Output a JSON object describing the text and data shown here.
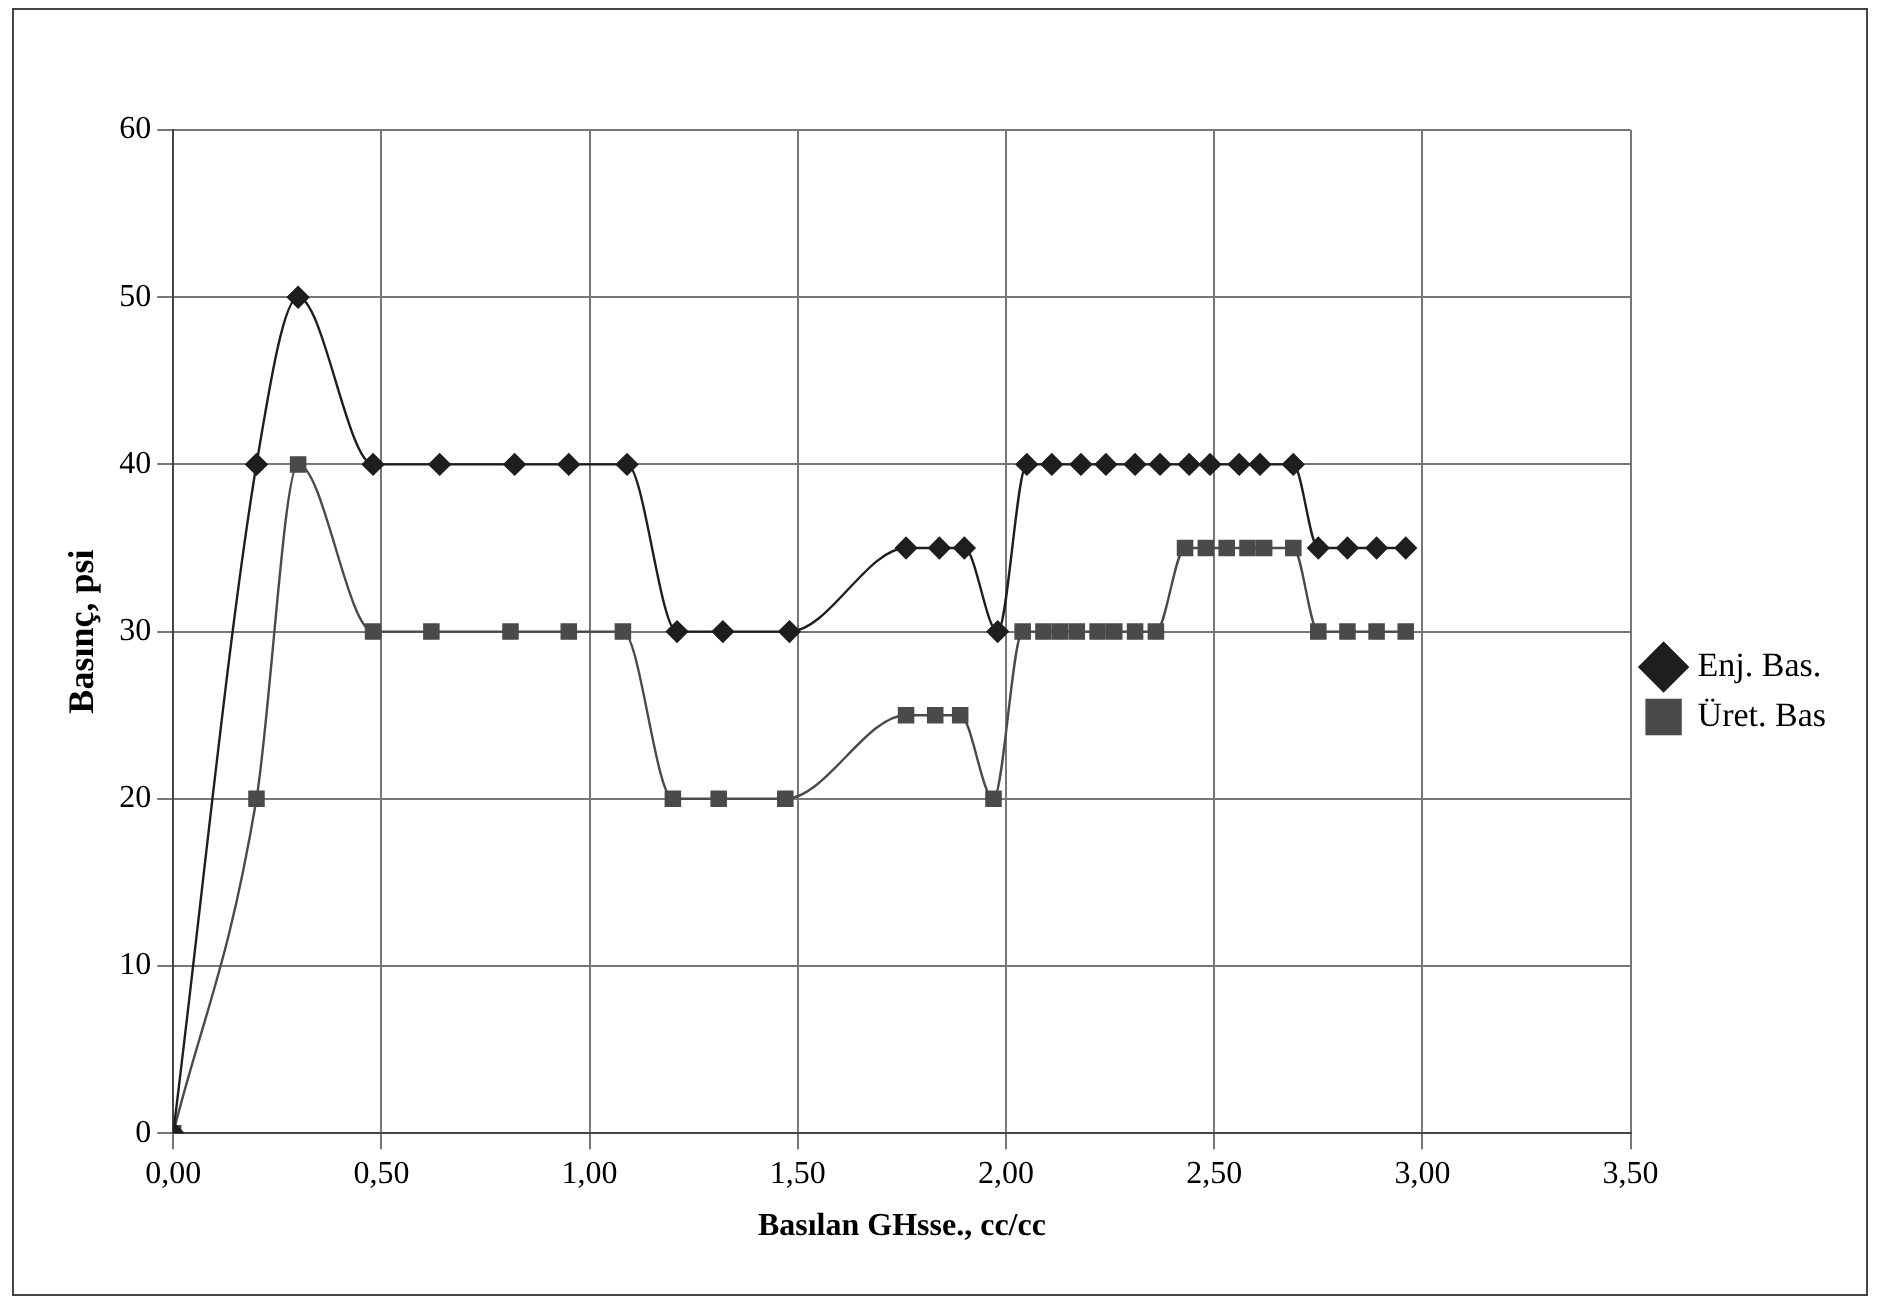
{
  "chart_data": {
    "type": "line",
    "xlabel": "Basılan GHsse., cc/cc",
    "ylabel": "Basınç, psi",
    "xlim": [
      0,
      3.5
    ],
    "xticks": [
      {
        "value": 0,
        "label": "0,00"
      },
      {
        "value": 0.5,
        "label": "0,50"
      },
      {
        "value": 1,
        "label": "1,00"
      },
      {
        "value": 1.5,
        "label": "1,50"
      },
      {
        "value": 2,
        "label": "2,00"
      },
      {
        "value": 2.5,
        "label": "2,50"
      },
      {
        "value": 3,
        "label": "3,00"
      },
      {
        "value": 3.5,
        "label": "3,50"
      }
    ],
    "ylim": [
      0,
      60
    ],
    "yticks": [
      0,
      10,
      20,
      30,
      40,
      50,
      60
    ],
    "grid": true,
    "legend": "right",
    "series": [
      {
        "name": "Enj. Bas.",
        "color": "#1e1e1e",
        "marker": "diamond",
        "x": [
          0,
          0.2,
          0.3,
          0.48,
          0.64,
          0.82,
          0.95,
          1.09,
          1.21,
          1.32,
          1.48,
          1.76,
          1.84,
          1.9,
          1.98,
          2.05,
          2.11,
          2.18,
          2.24,
          2.31,
          2.37,
          2.44,
          2.49,
          2.56,
          2.61,
          2.69,
          2.75,
          2.82,
          2.89,
          2.96
        ],
        "values": [
          0,
          40,
          50,
          40,
          40,
          40,
          40,
          40,
          30,
          30,
          30,
          35,
          35,
          35,
          30,
          40,
          40,
          40,
          40,
          40,
          40,
          40,
          40,
          40,
          40,
          40,
          35,
          35,
          35,
          35
        ]
      },
      {
        "name": "Üret. Bas",
        "color": "#4a4a4a",
        "marker": "square",
        "x": [
          0,
          0.2,
          0.3,
          0.48,
          0.62,
          0.81,
          0.95,
          1.08,
          1.2,
          1.31,
          1.47,
          1.76,
          1.83,
          1.89,
          1.97,
          2.04,
          2.09,
          2.13,
          2.17,
          2.22,
          2.26,
          2.31,
          2.36,
          2.43,
          2.48,
          2.53,
          2.58,
          2.62,
          2.69,
          2.75,
          2.82,
          2.89,
          2.96
        ],
        "values": [
          0,
          20,
          40,
          30,
          30,
          30,
          30,
          30,
          20,
          20,
          20,
          25,
          25,
          25,
          20,
          30,
          30,
          30,
          30,
          30,
          30,
          30,
          30,
          35,
          35,
          35,
          35,
          35,
          35,
          30,
          30,
          30,
          30
        ]
      }
    ]
  }
}
